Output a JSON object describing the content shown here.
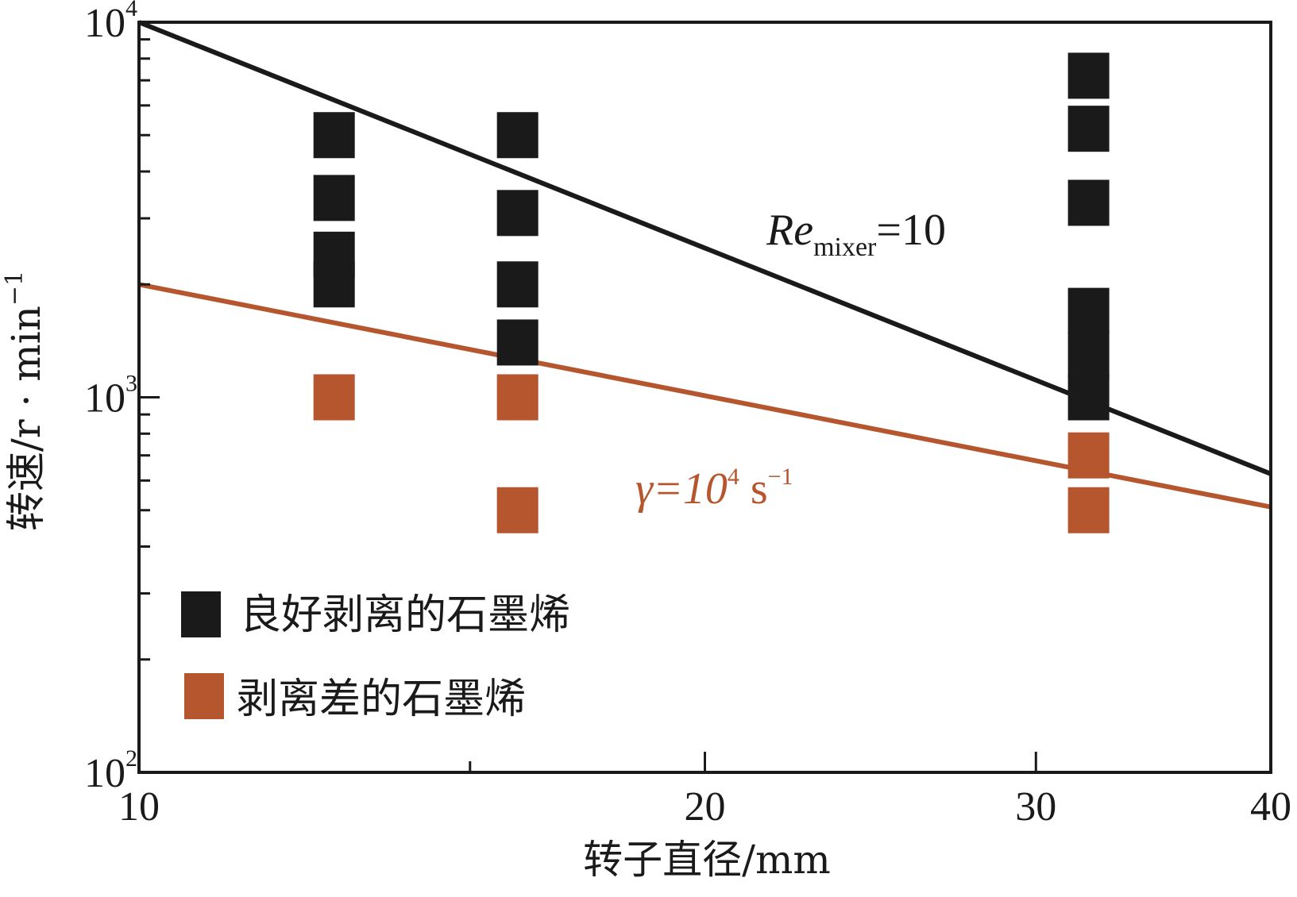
{
  "chart_data": {
    "type": "scatter",
    "xscale": "log",
    "yscale": "log",
    "xlim": [
      10,
      40
    ],
    "ylim": [
      100,
      10000
    ],
    "xlabel": "转子直径/mm",
    "ylabel_main": "转速/r · min",
    "ylabel_sup": "−1",
    "x_ticks": [
      {
        "value": 10,
        "label": "10"
      },
      {
        "value": 20,
        "label": "20"
      },
      {
        "value": 30,
        "label": "30"
      },
      {
        "value": 40,
        "label": "40"
      }
    ],
    "y_ticks": [
      {
        "value": 100,
        "base": "10",
        "exp": "2"
      },
      {
        "value": 1000,
        "base": "10",
        "exp": "3"
      },
      {
        "value": 10000,
        "base": "10",
        "exp": "4"
      }
    ],
    "colors": {
      "good": "#1a1a1a",
      "poor": "#b5562f",
      "axis": "#1a1a1a"
    },
    "series": [
      {
        "name": "良好剥离的石墨烯",
        "key": "good",
        "points": [
          {
            "x": 12.7,
            "y": 5000
          },
          {
            "x": 12.7,
            "y": 3400
          },
          {
            "x": 12.7,
            "y": 2400
          },
          {
            "x": 12.7,
            "y": 2000
          },
          {
            "x": 15.9,
            "y": 5000
          },
          {
            "x": 15.9,
            "y": 3100
          },
          {
            "x": 15.9,
            "y": 2000
          },
          {
            "x": 15.9,
            "y": 1400
          },
          {
            "x": 32,
            "y": 7200
          },
          {
            "x": 32,
            "y": 5200
          },
          {
            "x": 32,
            "y": 3300
          },
          {
            "x": 32,
            "y": 1700
          },
          {
            "x": 32,
            "y": 1300
          },
          {
            "x": 32,
            "y": 1000
          }
        ]
      },
      {
        "name": "剥离差的石墨烯",
        "key": "poor",
        "points": [
          {
            "x": 12.7,
            "y": 1000
          },
          {
            "x": 15.9,
            "y": 1000
          },
          {
            "x": 15.9,
            "y": 500
          },
          {
            "x": 32,
            "y": 700
          },
          {
            "x": 32,
            "y": 500
          }
        ]
      }
    ],
    "lines": [
      {
        "key": "good",
        "x": [
          10,
          40
        ],
        "y": [
          10000,
          625
        ]
      },
      {
        "key": "poor",
        "x": [
          10,
          40
        ],
        "y": [
          2000,
          510
        ]
      }
    ],
    "annotations": {
      "re": {
        "main": "Re",
        "sub": "mixer",
        "rest": "=10"
      },
      "gamma": {
        "main": "γ=10",
        "sup": "4",
        "unit": " s",
        "unit_sup": "−1"
      }
    },
    "legend": {
      "placement": "bottom-left"
    }
  }
}
